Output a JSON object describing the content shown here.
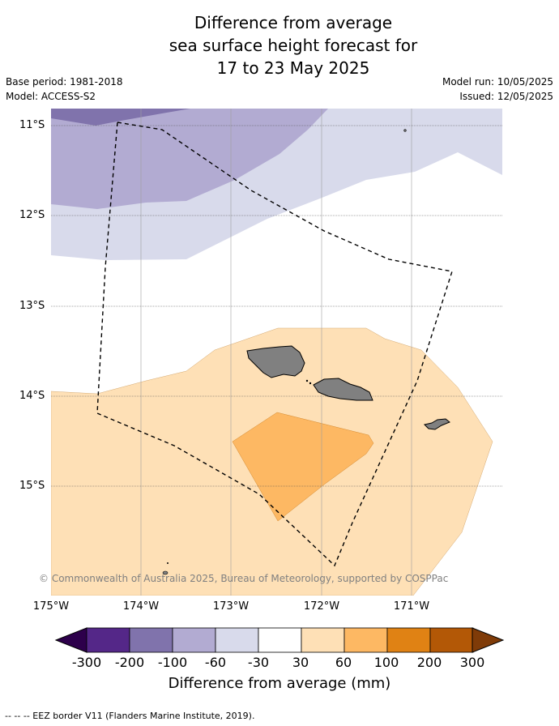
{
  "title": {
    "line1": "Difference from average",
    "line2": "sea surface height forecast for",
    "line3": "17 to 23 May 2025"
  },
  "meta": {
    "base_period": "Base period: 1981-2018",
    "model": "Model: ACCESS-S2",
    "model_run": "Model run: 10/05/2025",
    "issued": "Issued: 12/05/2025"
  },
  "map": {
    "credit": "© Commonwealth of Australia 2025, Bureau of Meteorology, supported by COSPPac",
    "lon_labels": [
      "175°W",
      "174°W",
      "173°W",
      "172°W",
      "171°W"
    ],
    "lat_labels": [
      "11°S",
      "12°S",
      "13°S",
      "14°S",
      "15°S"
    ],
    "land_color": "#808080",
    "gridline_color": "#9e9e9e"
  },
  "colorbar": {
    "ticks": [
      "-300",
      "-200",
      "-100",
      "-60",
      "-30",
      "30",
      "60",
      "100",
      "200",
      "300"
    ],
    "colors": [
      "#2d004b",
      "#542788",
      "#8073ac",
      "#b2abd2",
      "#d8daeb",
      "#ffffff",
      "#fee0b6",
      "#fdb863",
      "#e08214",
      "#b35806",
      "#7f3b08"
    ],
    "label": "Difference from average (mm)"
  },
  "footnote": "-- -- -- EEZ border V11 (Flanders Marine Institute, 2019)."
}
